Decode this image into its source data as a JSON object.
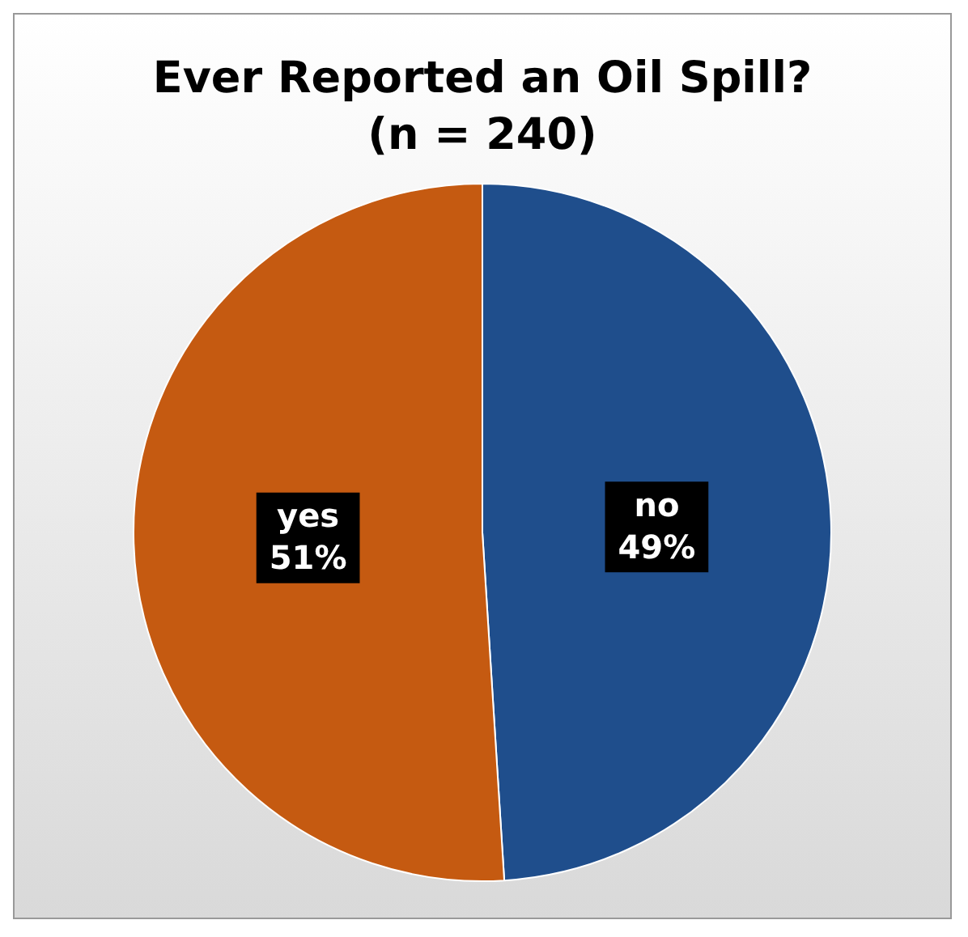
{
  "chart_data": {
    "type": "pie",
    "title": "Ever Reported an Oil Spill? (n = 240)",
    "categories": [
      "no",
      "yes"
    ],
    "values": [
      49,
      51
    ],
    "colors": [
      "#1f4e8c",
      "#c55a11"
    ],
    "value_labels": [
      "49%",
      "51%"
    ],
    "legend": false
  }
}
